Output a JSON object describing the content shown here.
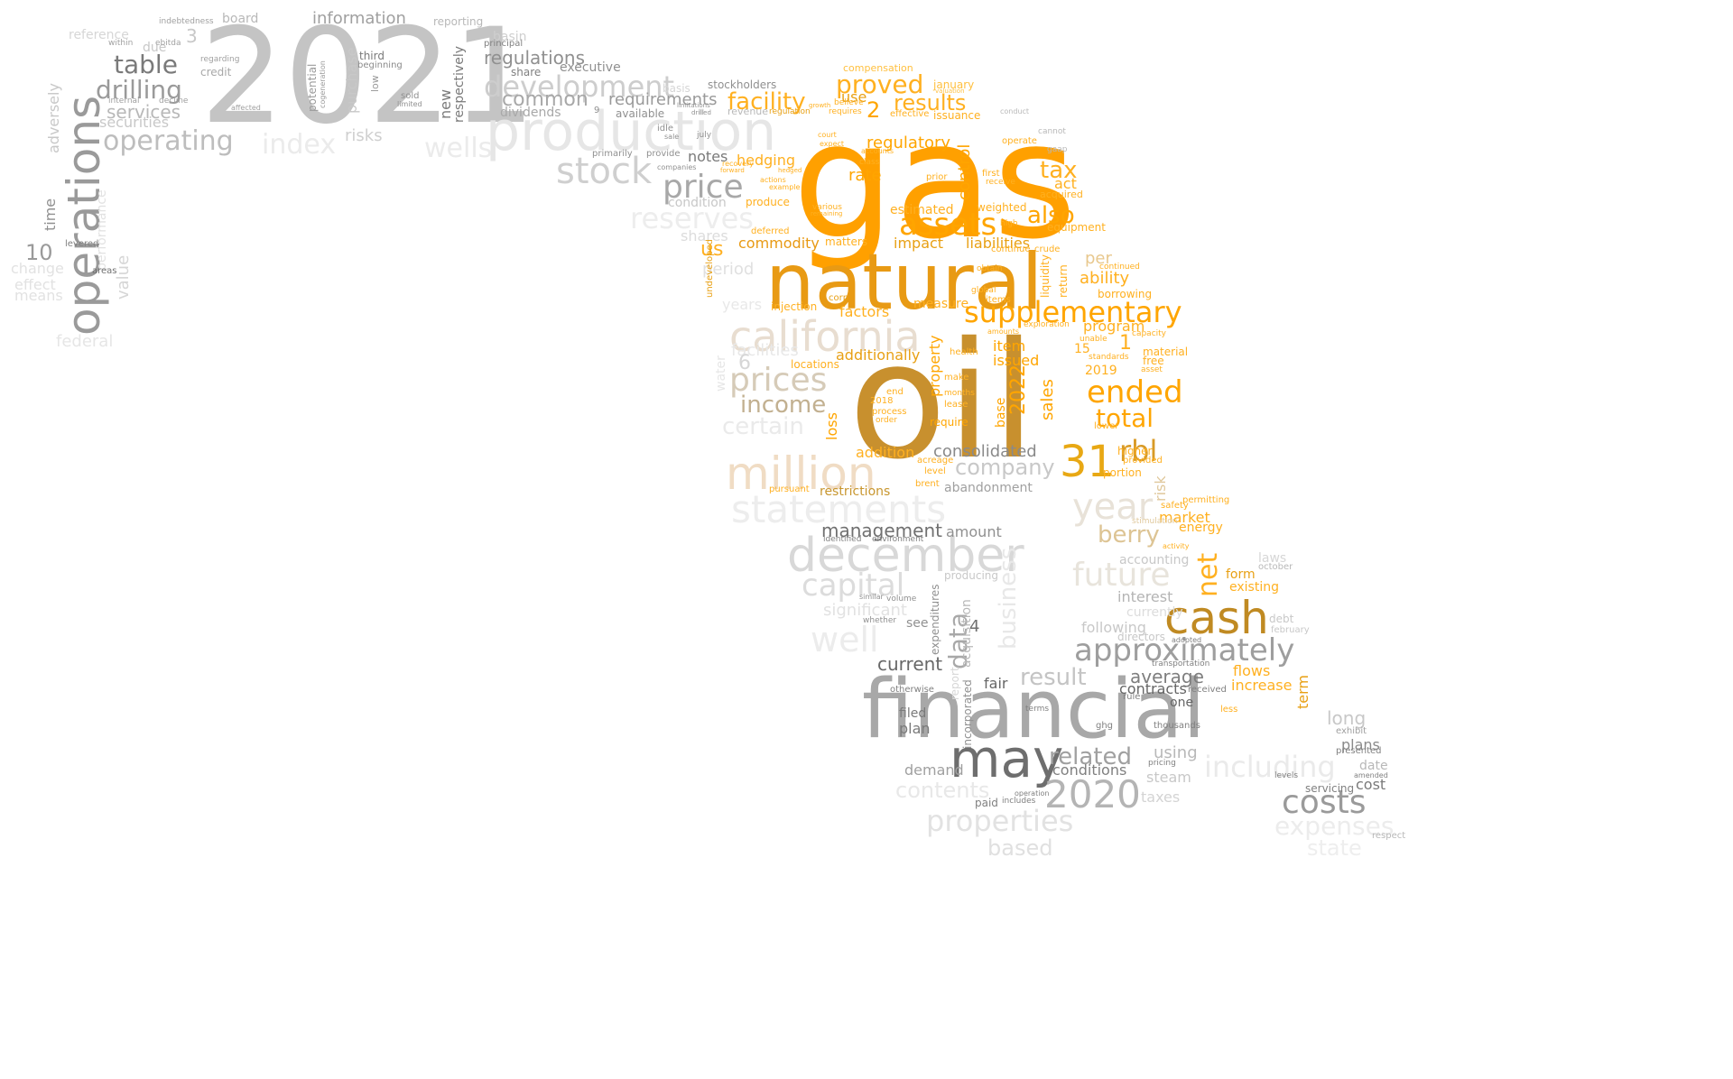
{
  "palette": {
    "orange": "#ffa000",
    "dark_gold": "#c8902e",
    "tan": "#e0c89c",
    "gray": "#9e9e9e",
    "light_gray": "#d6d6d6",
    "dark_gray": "#505050"
  },
  "words": [
    {
      "text": "gas",
      "color": "#ffa000"
    },
    {
      "text": "oil",
      "color": "#c8902e"
    },
    {
      "text": "natural",
      "color": "#e89a14"
    },
    {
      "text": "financial",
      "color": "#a8a8a8"
    },
    {
      "text": "2021",
      "color": "#c4c4c4"
    },
    {
      "text": "production",
      "color": "#e6e6e6"
    },
    {
      "text": "operations",
      "color": "#9a9a9a"
    },
    {
      "text": "cash",
      "color": "#c08a22"
    },
    {
      "text": "may",
      "color": "#6e6e6e"
    },
    {
      "text": "december",
      "color": "#d8d8d8"
    },
    {
      "text": "million",
      "color": "#f0dcc4"
    },
    {
      "text": "california",
      "color": "#e8ddd0"
    },
    {
      "text": "statements",
      "color": "#ededed"
    },
    {
      "text": "approximately",
      "color": "#9e9e9e"
    },
    {
      "text": "2020",
      "color": "#b4b4b4"
    },
    {
      "text": "31",
      "color": "#e8a814"
    },
    {
      "text": "supplementary",
      "color": "#ffa500"
    },
    {
      "text": "assets",
      "color": "#ffa500"
    },
    {
      "text": "stock",
      "color": "#cfcfcf"
    },
    {
      "text": "development",
      "color": "#cdcdcd"
    },
    {
      "text": "operating",
      "color": "#bdbdbd"
    },
    {
      "text": "table",
      "color": "#7a7a7a"
    },
    {
      "text": "drilling",
      "color": "#9a9a9a"
    },
    {
      "text": "price",
      "color": "#a8a8a8"
    },
    {
      "text": "prices",
      "color": "#d6cbb8"
    },
    {
      "text": "income",
      "color": "#c2b090"
    },
    {
      "text": "ended",
      "color": "#ffa500"
    },
    {
      "text": "total",
      "color": "#ffa500"
    },
    {
      "text": "year",
      "color": "#e8e2d8"
    },
    {
      "text": "costs",
      "color": "#9a9a9a"
    },
    {
      "text": "properties",
      "color": "#e2e2e2"
    },
    {
      "text": "future",
      "color": "#e8e4dc"
    },
    {
      "text": "capital",
      "color": "#dcdcdc"
    },
    {
      "text": "wells",
      "color": "#ebebeb"
    },
    {
      "text": "index",
      "color": "#ebebeb"
    },
    {
      "text": "regulations",
      "color": "#909090"
    },
    {
      "text": "common",
      "color": "#a8a8a8"
    },
    {
      "text": "facility",
      "color": "#ffb020"
    },
    {
      "text": "proved",
      "color": "#ffb020"
    },
    {
      "text": "results",
      "color": "#ffb020"
    },
    {
      "text": "also",
      "color": "#ffa500"
    },
    {
      "text": "tax",
      "color": "#ffb020"
    },
    {
      "text": "rbl",
      "color": "#d89a26"
    },
    {
      "text": "related",
      "color": "#a0a0a0"
    },
    {
      "text": "company",
      "color": "#c8c8c8"
    },
    {
      "text": "consolidated",
      "color": "#8a8a8a"
    },
    {
      "text": "berry",
      "color": "#ddc494"
    },
    {
      "text": "result",
      "color": "#c4c4c4"
    },
    {
      "text": "average",
      "color": "#7e7e7e"
    },
    {
      "text": "management",
      "color": "#707070"
    },
    {
      "text": "current",
      "color": "#686868"
    },
    {
      "text": "including",
      "color": "#eaeaea"
    },
    {
      "text": "expenses",
      "color": "#ececec"
    },
    {
      "text": "state",
      "color": "#eeeeee"
    },
    {
      "text": "based",
      "color": "#e0e0e0"
    },
    {
      "text": "information",
      "color": "#a0a0a0"
    },
    {
      "text": "services",
      "color": "#b8b8b8"
    },
    {
      "text": "securities",
      "color": "#c8c8c8"
    },
    {
      "text": "requirements",
      "color": "#9a9a9a"
    },
    {
      "text": "hedging",
      "color": "#ffb020"
    },
    {
      "text": "commodity",
      "color": "#e89a14"
    },
    {
      "text": "impact",
      "color": "#e8a014"
    },
    {
      "text": "liabilities",
      "color": "#e8a014"
    },
    {
      "text": "factors",
      "color": "#ffb020"
    },
    {
      "text": "additionally",
      "color": "#e8a014"
    },
    {
      "text": "program",
      "color": "#ffb020"
    },
    {
      "text": "item",
      "color": "#ffa500"
    },
    {
      "text": "issued",
      "color": "#ffa500"
    },
    {
      "text": "sales",
      "color": "#ffa500"
    },
    {
      "text": "2022",
      "color": "#ffa500"
    },
    {
      "text": "estimated",
      "color": "#ffb020"
    },
    {
      "text": "equipment",
      "color": "#ffb020"
    },
    {
      "text": "acquired",
      "color": "#ffb020"
    },
    {
      "text": "ability",
      "color": "#ffb020"
    },
    {
      "text": "per",
      "color": "#e8c88e"
    },
    {
      "text": "market",
      "color": "#ffb020"
    },
    {
      "text": "energy",
      "color": "#ffb020"
    },
    {
      "text": "increase",
      "color": "#ffb020"
    },
    {
      "text": "flows",
      "color": "#ffb020"
    },
    {
      "text": "existing",
      "color": "#ffb020"
    },
    {
      "text": "form",
      "color": "#e8a014"
    },
    {
      "text": "net",
      "color": "#ffb020"
    },
    {
      "text": "interest",
      "color": "#b4b4b4"
    },
    {
      "text": "following",
      "color": "#c8c8c8"
    },
    {
      "text": "accounting",
      "color": "#c8c8c8"
    },
    {
      "text": "significant",
      "color": "#e2e2e2"
    },
    {
      "text": "well",
      "color": "#ececec"
    },
    {
      "text": "data",
      "color": "#a8a8a8"
    },
    {
      "text": "fair",
      "color": "#666666"
    },
    {
      "text": "contracts",
      "color": "#666666"
    },
    {
      "text": "one",
      "color": "#666666"
    },
    {
      "text": "using",
      "color": "#b8b8b8"
    },
    {
      "text": "steam",
      "color": "#c8c8c8"
    },
    {
      "text": "taxes",
      "color": "#d4d4d4"
    },
    {
      "text": "plans",
      "color": "#8a8a8a"
    },
    {
      "text": "cost",
      "color": "#7a7a7a"
    },
    {
      "text": "long",
      "color": "#c8c8c8"
    },
    {
      "text": "demand",
      "color": "#a0a0a0"
    },
    {
      "text": "plan",
      "color": "#7a7a7a"
    },
    {
      "text": "filed",
      "color": "#7a7a7a"
    },
    {
      "text": "contents",
      "color": "#e8e8e8"
    },
    {
      "text": "conditions",
      "color": "#808080"
    },
    {
      "text": "amount",
      "color": "#909090"
    },
    {
      "text": "abandonment",
      "color": "#a0a0a0"
    },
    {
      "text": "restrictions",
      "color": "#c8962e"
    },
    {
      "text": "addition",
      "color": "#ffb020"
    },
    {
      "text": "reserves",
      "color": "#ededed"
    },
    {
      "text": "certain",
      "color": "#eaeaea"
    },
    {
      "text": "period",
      "color": "#e0e0e0"
    },
    {
      "text": "years",
      "color": "#e8e8e8"
    },
    {
      "text": "facilities",
      "color": "#e8e8e8"
    },
    {
      "text": "us",
      "color": "#ffb020"
    },
    {
      "text": "shares",
      "color": "#dcdcdc"
    },
    {
      "text": "notes",
      "color": "#7a7a7a"
    },
    {
      "text": "condition",
      "color": "#c8c8c8"
    },
    {
      "text": "dividends",
      "color": "#a8a8a8"
    },
    {
      "text": "executive",
      "color": "#909090"
    },
    {
      "text": "basin",
      "color": "#cfcfcf"
    },
    {
      "text": "available",
      "color": "#909090"
    },
    {
      "text": "board",
      "color": "#b8b8b8"
    },
    {
      "text": "due",
      "color": "#c8c8c8"
    },
    {
      "text": "reference",
      "color": "#d6d6d6"
    },
    {
      "text": "credit",
      "color": "#a8a8a8"
    },
    {
      "text": "risks",
      "color": "#cfcfcf"
    },
    {
      "text": "third",
      "color": "#7a7a7a"
    },
    {
      "text": "beginning",
      "color": "#8a8a8a"
    },
    {
      "text": "purchase",
      "color": "#c8c8c8"
    },
    {
      "text": "potential",
      "color": "#9a9a9a"
    },
    {
      "text": "cogeneration",
      "color": "#9a9a9a"
    },
    {
      "text": "new",
      "color": "#7a7a7a"
    },
    {
      "text": "respectively",
      "color": "#7a7a7a"
    },
    {
      "text": "low",
      "color": "#9a9a9a"
    },
    {
      "text": "sold",
      "color": "#909090"
    },
    {
      "text": "limited",
      "color": "#909090"
    },
    {
      "text": "reporting",
      "color": "#b8b8b8"
    },
    {
      "text": "principal",
      "color": "#808080"
    },
    {
      "text": "share",
      "color": "#808080"
    },
    {
      "text": "stockholders",
      "color": "#909090"
    },
    {
      "text": "revenue",
      "color": "#b8b8b8"
    },
    {
      "text": "regulation",
      "color": "#e8a014"
    },
    {
      "text": "compensation",
      "color": "#ffc040"
    },
    {
      "text": "january",
      "color": "#ffc040"
    },
    {
      "text": "issuance",
      "color": "#ffb020"
    },
    {
      "text": "use",
      "color": "#e8a014"
    },
    {
      "text": "2",
      "color": "#ffa500"
    },
    {
      "text": "regulatory",
      "color": "#ffa500"
    },
    {
      "text": "rate",
      "color": "#ffa500"
    },
    {
      "text": "control",
      "color": "#ffa500"
    },
    {
      "text": "act",
      "color": "#ffb020"
    },
    {
      "text": "operate",
      "color": "#ffb020"
    },
    {
      "text": "first",
      "color": "#ffb020"
    },
    {
      "text": "receive",
      "color": "#ffb020"
    },
    {
      "text": "weighted",
      "color": "#ffb020"
    },
    {
      "text": "high",
      "color": "#ffb020"
    },
    {
      "text": "produce",
      "color": "#ffb020"
    },
    {
      "text": "deferred",
      "color": "#ffb020"
    },
    {
      "text": "matters",
      "color": "#ffb020"
    },
    {
      "text": "measure",
      "color": "#ffb020"
    },
    {
      "text": "injection",
      "color": "#ffb020"
    },
    {
      "text": "locations",
      "color": "#ffb020"
    },
    {
      "text": "loss",
      "color": "#ffa500"
    },
    {
      "text": "property",
      "color": "#ffa500"
    },
    {
      "text": "require",
      "color": "#ffa500"
    },
    {
      "text": "base",
      "color": "#ffa500"
    },
    {
      "text": "risk",
      "color": "#e0c89c"
    },
    {
      "text": "lower",
      "color": "#ffb020"
    },
    {
      "text": "higher",
      "color": "#ffb020"
    },
    {
      "text": "portion",
      "color": "#ffb020"
    },
    {
      "text": "provided",
      "color": "#ffb020"
    },
    {
      "text": "2019",
      "color": "#ffb020"
    },
    {
      "text": "15",
      "color": "#ffb020"
    },
    {
      "text": "1",
      "color": "#ffb020"
    },
    {
      "text": "material",
      "color": "#ffb020"
    },
    {
      "text": "free",
      "color": "#ffb020"
    },
    {
      "text": "borrowing",
      "color": "#ffb020"
    },
    {
      "text": "continued",
      "color": "#ffb020"
    },
    {
      "text": "liquidity",
      "color": "#ffb020"
    },
    {
      "text": "return",
      "color": "#ffb020"
    },
    {
      "text": "acreage",
      "color": "#ffb020"
    },
    {
      "text": "brent",
      "color": "#ffb020"
    },
    {
      "text": "level",
      "color": "#ffb020"
    },
    {
      "text": "make",
      "color": "#ffb020"
    },
    {
      "text": "lease",
      "color": "#ffb020"
    },
    {
      "text": "health",
      "color": "#ffb020"
    },
    {
      "text": "months",
      "color": "#ffb020"
    },
    {
      "text": "end",
      "color": "#ffb020"
    },
    {
      "text": "process",
      "color": "#ffb020"
    },
    {
      "text": "order",
      "color": "#ffb020"
    },
    {
      "text": "2018",
      "color": "#ffb020"
    },
    {
      "text": "pursuant",
      "color": "#ffb020"
    },
    {
      "text": "permitting",
      "color": "#ffb020"
    },
    {
      "text": "safety",
      "color": "#ffb020"
    },
    {
      "text": "stimulation",
      "color": "#e0c89c"
    },
    {
      "text": "activity",
      "color": "#ffb020"
    },
    {
      "text": "laws",
      "color": "#d6d6d6"
    },
    {
      "text": "october",
      "color": "#b8b8b8"
    },
    {
      "text": "debt",
      "color": "#c8c8c8"
    },
    {
      "text": "february",
      "color": "#c8c8c8"
    },
    {
      "text": "currently",
      "color": "#dcdcdc"
    },
    {
      "text": "directors",
      "color": "#c8c8c8"
    },
    {
      "text": "adopted",
      "color": "#808080"
    },
    {
      "text": "transportation",
      "color": "#808080"
    },
    {
      "text": "thousands",
      "color": "#808080"
    },
    {
      "text": "received",
      "color": "#808080"
    },
    {
      "text": "less",
      "color": "#ffb020"
    },
    {
      "text": "pricing",
      "color": "#808080"
    },
    {
      "text": "rule",
      "color": "#808080"
    },
    {
      "text": "ghg",
      "color": "#808080"
    },
    {
      "text": "terms",
      "color": "#808080"
    },
    {
      "text": "presented",
      "color": "#808080"
    },
    {
      "text": "exhibit",
      "color": "#a0a0a0"
    },
    {
      "text": "servicing",
      "color": "#808080"
    },
    {
      "text": "levels",
      "color": "#808080"
    },
    {
      "text": "amended",
      "color": "#808080"
    },
    {
      "text": "respect",
      "color": "#b8b8b8"
    },
    {
      "text": "date",
      "color": "#b8b8b8"
    },
    {
      "text": "term",
      "color": "#e8a014"
    },
    {
      "text": "paid",
      "color": "#808080"
    },
    {
      "text": "includes",
      "color": "#808080"
    },
    {
      "text": "operation",
      "color": "#808080"
    },
    {
      "text": "report",
      "color": "#d6d6d6"
    },
    {
      "text": "see",
      "color": "#909090"
    },
    {
      "text": "4",
      "color": "#707070"
    },
    {
      "text": "expenditures",
      "color": "#909090"
    },
    {
      "text": "acquisition",
      "color": "#b8b8b8"
    },
    {
      "text": "incorporated",
      "color": "#909090"
    },
    {
      "text": "otherwise",
      "color": "#808080"
    },
    {
      "text": "business",
      "color": "#e8e8e8"
    },
    {
      "text": "producing",
      "color": "#c8c8c8"
    },
    {
      "text": "identified",
      "color": "#808080"
    },
    {
      "text": "environment",
      "color": "#808080"
    },
    {
      "text": "volume",
      "color": "#909090"
    },
    {
      "text": "similar",
      "color": "#909090"
    },
    {
      "text": "whether",
      "color": "#909090"
    },
    {
      "text": "time",
      "color": "#909090"
    },
    {
      "text": "10",
      "color": "#9a9a9a"
    },
    {
      "text": "adversely",
      "color": "#c8c8c8"
    },
    {
      "text": "value",
      "color": "#d6d6d6"
    },
    {
      "text": "performance",
      "color": "#e2e2e2"
    },
    {
      "text": "change",
      "color": "#e2e2e2"
    },
    {
      "text": "effect",
      "color": "#e2e2e2"
    },
    {
      "text": "means",
      "color": "#e2e2e2"
    },
    {
      "text": "federal",
      "color": "#e6e6e6"
    },
    {
      "text": "levered",
      "color": "#808080"
    },
    {
      "text": "areas",
      "color": "#707070"
    },
    {
      "text": "3",
      "color": "#c8c8c8"
    },
    {
      "text": "primarily",
      "color": "#909090"
    },
    {
      "text": "provide",
      "color": "#909090"
    },
    {
      "text": "idle",
      "color": "#909090"
    },
    {
      "text": "july",
      "color": "#909090"
    },
    {
      "text": "sale",
      "color": "#909090"
    },
    {
      "text": "companies",
      "color": "#909090"
    },
    {
      "text": "indebtedness",
      "color": "#a0a0a0"
    },
    {
      "text": "within",
      "color": "#a0a0a0"
    },
    {
      "text": "ebitda",
      "color": "#a0a0a0"
    },
    {
      "text": "regarding",
      "color": "#a0a0a0"
    },
    {
      "text": "internal",
      "color": "#a0a0a0"
    },
    {
      "text": "decline",
      "color": "#a0a0a0"
    },
    {
      "text": "affected",
      "color": "#a0a0a0"
    },
    {
      "text": "9",
      "color": "#909090"
    },
    {
      "text": "6",
      "color": "#d6d6d6"
    },
    {
      "text": "water",
      "color": "#e6e6e6"
    },
    {
      "text": "corp",
      "color": "#e8a014"
    },
    {
      "text": "undeveloped",
      "color": "#e8a014"
    },
    {
      "text": "global",
      "color": "#ffb020"
    },
    {
      "text": "exploration",
      "color": "#ffb020"
    },
    {
      "text": "capacity",
      "color": "#ffb020"
    },
    {
      "text": "unable",
      "color": "#ffb020"
    },
    {
      "text": "standards",
      "color": "#ffb020"
    },
    {
      "text": "asset",
      "color": "#ffb020"
    },
    {
      "text": "obtain",
      "color": "#ffb020"
    },
    {
      "text": "amounts",
      "color": "#ffb020"
    },
    {
      "text": "various",
      "color": "#ffb020"
    },
    {
      "text": "remaining",
      "color": "#ffb020"
    },
    {
      "text": "prior",
      "color": "#ffb020"
    },
    {
      "text": "class",
      "color": "#ffb020"
    },
    {
      "text": "effective",
      "color": "#ffb020"
    },
    {
      "text": "accounts",
      "color": "#ffb020"
    },
    {
      "text": "requires",
      "color": "#ffb020"
    },
    {
      "text": "believe",
      "color": "#ffb020"
    },
    {
      "text": "growth",
      "color": "#ffb020"
    },
    {
      "text": "court",
      "color": "#ffb020"
    },
    {
      "text": "expect",
      "color": "#ffb020"
    },
    {
      "text": "recovery",
      "color": "#ffb020"
    },
    {
      "text": "forward",
      "color": "#ffb020"
    },
    {
      "text": "hedged",
      "color": "#ffb020"
    },
    {
      "text": "actions",
      "color": "#ffb020"
    },
    {
      "text": "example",
      "color": "#ffb020"
    },
    {
      "text": "basis",
      "color": "#d6d6d6"
    },
    {
      "text": "drilled",
      "color": "#909090"
    },
    {
      "text": "limitations",
      "color": "#909090"
    },
    {
      "text": "crude",
      "color": "#ffb020"
    },
    {
      "text": "continue",
      "color": "#ffb020"
    },
    {
      "text": "items",
      "color": "#ffb020"
    },
    {
      "text": "cannot",
      "color": "#b8b8b8"
    },
    {
      "text": "conduct",
      "color": "#b8b8b8"
    },
    {
      "text": "valuation",
      "color": "#ffc040"
    },
    {
      "text": "gaap",
      "color": "#b8b8b8"
    }
  ]
}
